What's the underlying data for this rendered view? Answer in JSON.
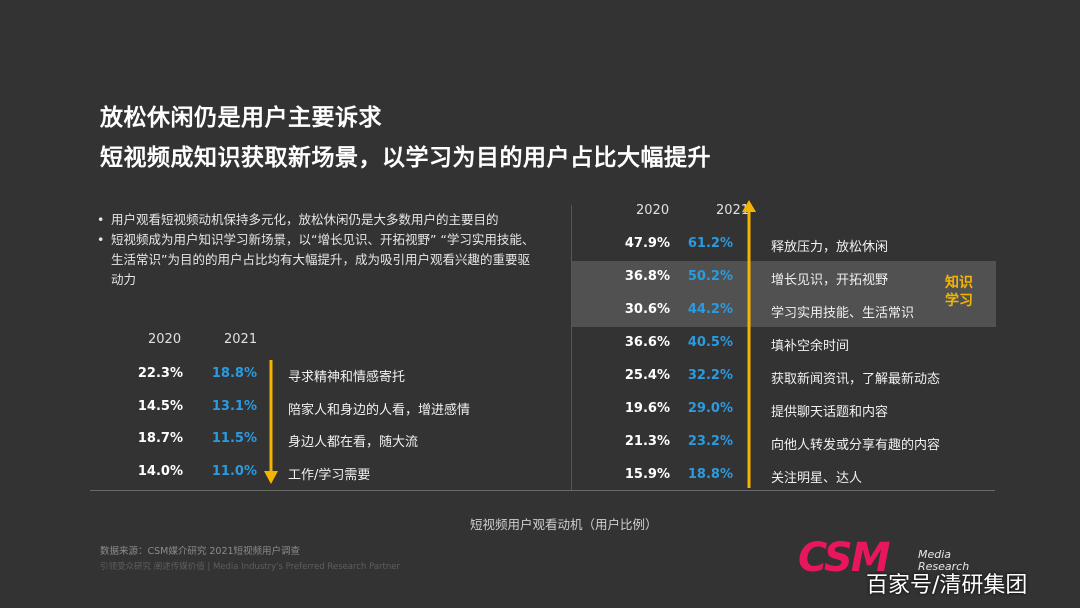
{
  "title_line1": "放松休闲仍是用户主要诉求",
  "title_line2": "短视频成知识获取新场景，以学习为目的用户占比大幅提升",
  "bullets": [
    "用户观看短视频动机保持多元化，放松休闲仍是大多数用户的主要目的",
    "短视频成为用户知识学习新场景，以“增长见识、开拓视野” “学习实用技能、生活常识”为目的的用户占比均有大幅提升，成为吸引用户观看兴趣的重要驱动力"
  ],
  "highlight_label_line1": "知识",
  "highlight_label_line2": "学习",
  "caption": "短视频用户观看动机（用户比例）",
  "source": "数据来源：CSM媒介研究 2021短视频用户调查",
  "tagline": "引领受众研究 阐述传媒价值 | Media Industry's Preferred Research Partner",
  "logo_text": "CSM",
  "logo_sub1": "Media",
  "logo_sub2": "Research",
  "watermark": "百家号/清研集团",
  "colors": {
    "background": "#333333",
    "value_2021": "#2a9be0",
    "arrow": "#f5b400",
    "highlight": "#515151",
    "logo": "#e8175d"
  },
  "chart_data": [
    {
      "type": "table",
      "title": "",
      "years": [
        "2020",
        "2021"
      ],
      "trend": "increase",
      "rows": [
        {
          "label": "释放压力，放松休闲",
          "v2020": "47.9%",
          "v2021": "61.2%"
        },
        {
          "label": "增长见识，开拓视野",
          "v2020": "36.8%",
          "v2021": "50.2%",
          "highlight": true
        },
        {
          "label": "学习实用技能、生活常识",
          "v2020": "30.6%",
          "v2021": "44.2%",
          "highlight": true
        },
        {
          "label": "填补空余时间",
          "v2020": "36.6%",
          "v2021": "40.5%"
        },
        {
          "label": "获取新闻资讯，了解最新动态",
          "v2020": "25.4%",
          "v2021": "32.2%"
        },
        {
          "label": "提供聊天话题和内容",
          "v2020": "19.6%",
          "v2021": "29.0%"
        },
        {
          "label": "向他人转发或分享有趣的内容",
          "v2020": "21.3%",
          "v2021": "23.2%"
        },
        {
          "label": "关注明星、达人",
          "v2020": "15.9%",
          "v2021": "18.8%"
        }
      ]
    },
    {
      "type": "table",
      "title": "",
      "years": [
        "2020",
        "2021"
      ],
      "trend": "decrease",
      "rows": [
        {
          "label": "寻求精神和情感寄托",
          "v2020": "22.3%",
          "v2021": "18.8%"
        },
        {
          "label": "陪家人和身边的人看，增进感情",
          "v2020": "14.5%",
          "v2021": "13.1%"
        },
        {
          "label": "身边人都在看，随大流",
          "v2020": "18.7%",
          "v2021": "11.5%"
        },
        {
          "label": "工作/学习需要",
          "v2020": "14.0%",
          "v2021": "11.0%"
        }
      ]
    }
  ]
}
